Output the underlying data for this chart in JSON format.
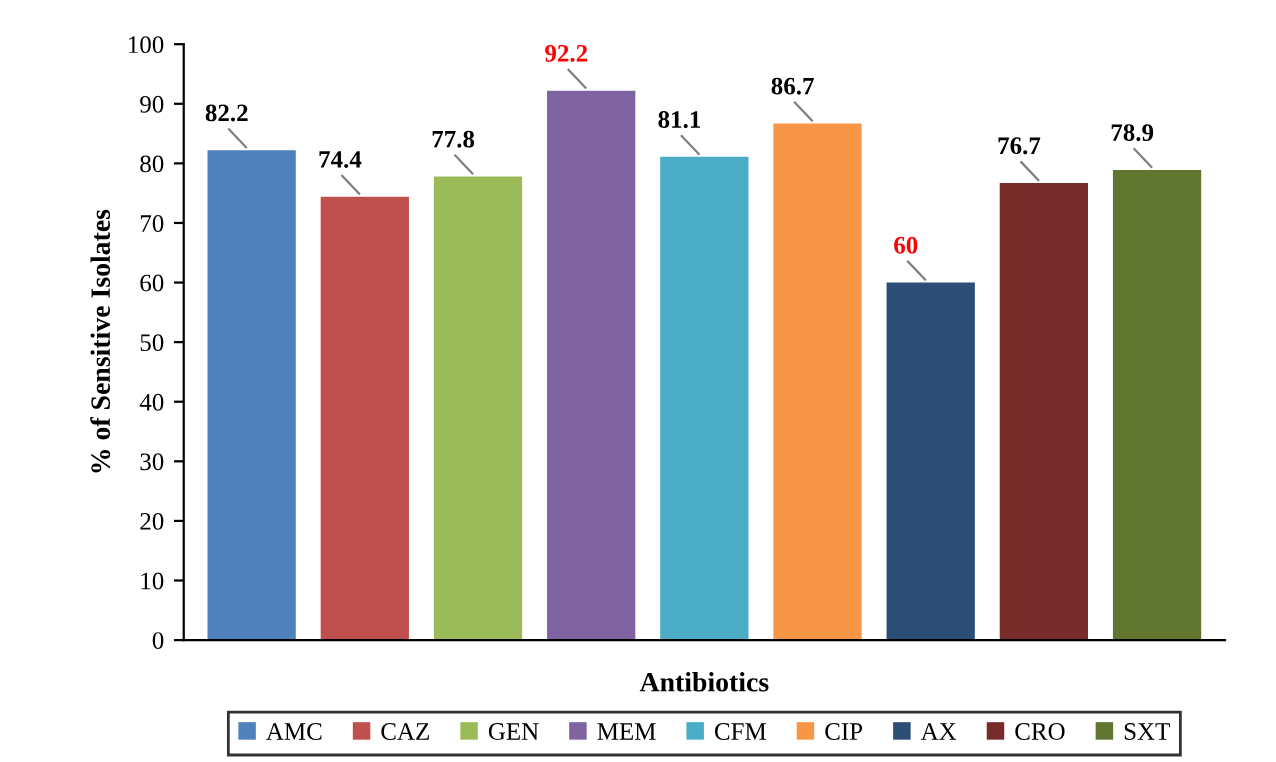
{
  "chart_data": {
    "type": "bar",
    "xlabel": "Antibiotics",
    "ylabel": "% of Sensitive Isolates",
    "categories": [
      null,
      null,
      null,
      null,
      null,
      null,
      null,
      null,
      null
    ],
    "series": [
      {
        "name": "AMC",
        "color": "#4f81bd",
        "values": [
          82.2,
          null,
          null,
          null,
          null,
          null,
          null,
          null,
          null
        ]
      },
      {
        "name": "CAZ",
        "color": "#c0504d",
        "values": [
          null,
          74.4,
          null,
          null,
          null,
          null,
          null,
          null,
          null
        ]
      },
      {
        "name": "GEN",
        "color": "#9bbb59",
        "values": [
          null,
          null,
          77.8,
          null,
          null,
          null,
          null,
          null,
          null
        ]
      },
      {
        "name": "MEM",
        "color": "#8064a2",
        "values": [
          null,
          null,
          null,
          92.2,
          null,
          null,
          null,
          null,
          null
        ]
      },
      {
        "name": "CFM",
        "color": "#4bacc6",
        "values": [
          null,
          null,
          null,
          null,
          81.1,
          null,
          null,
          null,
          null
        ]
      },
      {
        "name": "CIP",
        "color": "#f79646",
        "values": [
          null,
          null,
          null,
          null,
          null,
          86.7,
          null,
          null,
          null
        ]
      },
      {
        "name": "AX",
        "color": "#2c4d75",
        "values": [
          null,
          null,
          null,
          null,
          null,
          null,
          60,
          null,
          null
        ]
      },
      {
        "name": "CRO",
        "color": "#772c2a",
        "values": [
          null,
          null,
          null,
          null,
          null,
          null,
          null,
          76.7,
          null
        ]
      },
      {
        "name": "SXT",
        "color": "#5f7530",
        "values": [
          null,
          null,
          null,
          null,
          null,
          null,
          null,
          null,
          78.9
        ]
      }
    ],
    "ylim": [
      0,
      100
    ],
    "yticks": [
      0,
      10,
      20,
      30,
      40,
      50,
      60,
      70,
      80,
      90,
      100
    ],
    "data_labels": true,
    "tick_labels": "y",
    "legend": "bottom",
    "grid": false
  }
}
